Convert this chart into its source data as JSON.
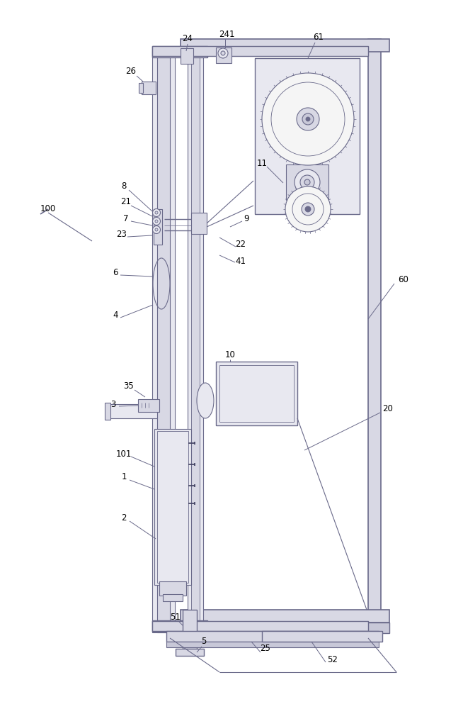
{
  "bg_color": "#ffffff",
  "lc": "#6a6a8a",
  "lc_dark": "#404060",
  "fc_light": "#e8e8f0",
  "fc_mid": "#d8d8e4",
  "fc_dark": "#c8c8d8"
}
